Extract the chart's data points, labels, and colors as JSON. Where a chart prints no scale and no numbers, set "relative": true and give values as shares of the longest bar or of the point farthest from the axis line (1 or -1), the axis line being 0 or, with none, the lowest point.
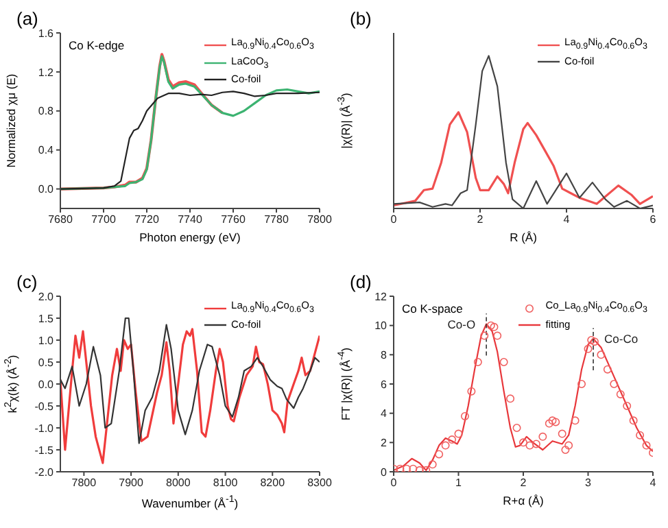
{
  "chart_data": [
    {
      "type": "line",
      "xlabel": "Photon energy (eV)",
      "ylabel": "Normalized χμ (E)",
      "annotations": [
        "(a)",
        "Co K-edge"
      ],
      "xlim": [
        7680,
        7800
      ],
      "xticks": [
        7680,
        7700,
        7720,
        7740,
        7760,
        7780,
        7800
      ],
      "ylim": [
        -0.2,
        1.6
      ],
      "yticks": [
        {
          "value": 0,
          "label": "0.0"
        },
        0.4,
        0.8,
        1.2,
        1.6
      ],
      "legend": "top right",
      "marker": "none",
      "series": [
        {
          "name": "La$_{0.9}$Ni$_{0.4}$Co$_{0.6}$O$_{3}$",
          "color": "#f05050",
          "x": [
            7680,
            7700,
            7705,
            7710,
            7712,
            7715,
            7718,
            7720,
            7722,
            7724,
            7726,
            7727,
            7728,
            7730,
            7732,
            7735,
            7738,
            7742,
            7745,
            7750,
            7755
          ],
          "values": [
            0,
            0.01,
            0.02,
            0.04,
            0.07,
            0.07,
            0.11,
            0.21,
            0.5,
            0.9,
            1.26,
            1.38,
            1.31,
            1.12,
            1.05,
            1.09,
            1.1,
            1.07,
            0.99,
            0.86,
            0.78
          ]
        },
        {
          "name": "LaCoO$_{3}$",
          "color": "#3cb371",
          "x": [
            7680,
            7700,
            7705,
            7710,
            7712,
            7715,
            7718,
            7720,
            7722,
            7724,
            7726,
            7727,
            7728,
            7730,
            7732,
            7735,
            7738,
            7742,
            7745,
            7750,
            7755,
            7760,
            7765,
            7770,
            7775,
            7780,
            7785,
            7790,
            7795,
            7800
          ],
          "values": [
            0,
            0.01,
            0.02,
            0.03,
            0.06,
            0.07,
            0.1,
            0.2,
            0.5,
            0.9,
            1.25,
            1.36,
            1.3,
            1.1,
            1.03,
            1.07,
            1.08,
            1.05,
            0.98,
            0.86,
            0.78,
            0.75,
            0.8,
            0.88,
            0.96,
            1.01,
            1.02,
            1.0,
            0.98,
            1.0
          ]
        },
        {
          "name": "Co-foil",
          "color": "#222222",
          "x": [
            7680,
            7700,
            7705,
            7708,
            7710,
            7712,
            7714,
            7716,
            7718,
            7720,
            7725,
            7730,
            7735,
            7740,
            7745,
            7750,
            7755,
            7760,
            7765,
            7770,
            7775,
            7780,
            7790,
            7800
          ],
          "values": [
            0,
            0.01,
            0.03,
            0.08,
            0.3,
            0.52,
            0.6,
            0.62,
            0.7,
            0.8,
            0.93,
            0.98,
            0.98,
            0.96,
            0.97,
            0.96,
            0.99,
            1.0,
            0.98,
            0.95,
            0.96,
            0.98,
            0.98,
            0.99
          ]
        }
      ]
    },
    {
      "type": "line",
      "xlabel": "R (Å)",
      "ylabel": "|χ(R)| (Å$^{-3}$)",
      "annotations": [
        "(b)"
      ],
      "relative": true,
      "xlim": [
        0,
        6
      ],
      "xticks": [
        0,
        2,
        4,
        6
      ],
      "tick_labels": "x",
      "legend": "top right",
      "marker": "none",
      "series": [
        {
          "name": "La$_{0.9}$Ni$_{0.4}$Co$_{0.6}$O$_{3}$",
          "color": "#f05050",
          "x": [
            0,
            0.5,
            0.7,
            0.9,
            1.1,
            1.3,
            1.5,
            1.7,
            1.9,
            2.0,
            2.2,
            2.4,
            2.55,
            2.65,
            2.8,
            3.0,
            3.1,
            3.3,
            3.5,
            3.7,
            3.9,
            4.1,
            4.3,
            4.7,
            5.2,
            5.5,
            5.7,
            6.0
          ],
          "values": [
            0.02,
            0.05,
            0.12,
            0.13,
            0.3,
            0.55,
            0.63,
            0.5,
            0.2,
            0.12,
            0.12,
            0.21,
            0.16,
            0.1,
            0.3,
            0.52,
            0.56,
            0.48,
            0.38,
            0.28,
            0.13,
            0.1,
            0.07,
            0.03,
            0.15,
            0.09,
            0.03,
            0.08
          ]
        },
        {
          "name": "Co-foil",
          "color": "#444444",
          "x": [
            0,
            0.6,
            0.9,
            1.2,
            1.35,
            1.55,
            1.7,
            1.9,
            2.05,
            2.2,
            2.4,
            2.6,
            2.75,
            3.0,
            3.3,
            3.55,
            4.0,
            4.3,
            4.6,
            4.9,
            5.1,
            5.4,
            5.7,
            6.0
          ],
          "values": [
            0.03,
            0.04,
            0.01,
            0.03,
            0.02,
            0.1,
            0.12,
            0.55,
            0.9,
            1.0,
            0.8,
            0.3,
            0.06,
            0.0,
            0.18,
            0.03,
            0.23,
            0.07,
            0.17,
            0.06,
            0.01,
            0.05,
            0.0,
            0.02
          ]
        }
      ]
    },
    {
      "type": "line",
      "xlabel": "Wavenumber (Å$^{-1}$)",
      "ylabel": "k$^{2}$χ(k) (Å$^{-2}$)",
      "annotations": [
        "(c)"
      ],
      "xlim": [
        7750,
        8300
      ],
      "xticks": [
        7800,
        7900,
        8000,
        8100,
        8200,
        8300
      ],
      "ylim": [
        -2,
        2
      ],
      "yticks": [
        {
          "value": -2,
          "label": "-2.0"
        },
        -1.5,
        {
          "value": -1,
          "label": "-1.0"
        },
        -0.5,
        {
          "value": 0,
          "label": "0.0"
        },
        0.5,
        {
          "value": 1,
          "label": "1.0"
        },
        1.5,
        {
          "value": 2,
          "label": "2.0"
        }
      ],
      "legend": "top right",
      "marker": "none",
      "series": [
        {
          "name": "La$_{0.9}$Ni$_{0.4}$Co$_{0.6}$O$_{3}$",
          "color": "#f03c3c",
          "x": [
            7750,
            7760,
            7775,
            7782,
            7790,
            7798,
            7805,
            7815,
            7825,
            7840,
            7850,
            7860,
            7870,
            7878,
            7885,
            7893,
            7900,
            7910,
            7922,
            7935,
            7945,
            7955,
            7965,
            7975,
            7982,
            7990,
            8000,
            8010,
            8018,
            8025,
            8030,
            8040,
            8050,
            8058,
            8068,
            8080,
            8088,
            8095,
            8105,
            8112,
            8118,
            8130,
            8145,
            8158,
            8165,
            8172,
            8180,
            8190,
            8200,
            8210,
            8220,
            8225,
            8232,
            8245,
            8255,
            8262,
            8270,
            8280,
            8290,
            8300
          ],
          "values": [
            0.1,
            -1.5,
            0.3,
            1.1,
            0.6,
            1.2,
            0.5,
            -0.5,
            -1.2,
            -1.8,
            -0.8,
            0.2,
            0.8,
            0.3,
            1.0,
            0.8,
            0.9,
            -0.2,
            -1.3,
            -1.2,
            -0.7,
            -0.2,
            0.2,
            0.95,
            0.3,
            -0.9,
            0.0,
            0.9,
            1.2,
            1.1,
            1.25,
            0.3,
            -1.1,
            -1.2,
            -0.6,
            0.3,
            0.8,
            0.5,
            -0.5,
            -0.8,
            -0.85,
            -0.3,
            0.2,
            0.4,
            0.85,
            0.5,
            0.45,
            0.0,
            -0.6,
            -0.7,
            -0.9,
            -1.1,
            -0.4,
            0.0,
            0.3,
            0.6,
            0.2,
            0.3,
            0.7,
            1.1
          ]
        },
        {
          "name": "Co-foil",
          "color": "#333333",
          "x": [
            7750,
            7760,
            7775,
            7790,
            7805,
            7820,
            7835,
            7845,
            7858,
            7875,
            7888,
            7895,
            7905,
            7917,
            7930,
            7945,
            7960,
            7975,
            7985,
            8000,
            8015,
            8030,
            8045,
            8062,
            8072,
            8088,
            8100,
            8115,
            8128,
            8140,
            8155,
            8168,
            8180,
            8195,
            8210,
            8220,
            8230,
            8245,
            8255,
            8265,
            8280,
            8290,
            8300
          ],
          "values": [
            0.1,
            -0.1,
            0.4,
            -0.5,
            0.0,
            0.85,
            0.2,
            -1.0,
            -0.9,
            0.3,
            1.5,
            1.5,
            0.3,
            -1.35,
            -0.6,
            -0.3,
            0.3,
            1.35,
            0.8,
            -0.6,
            -1.15,
            -0.6,
            0.3,
            0.9,
            0.85,
            0.2,
            -0.5,
            -0.75,
            -0.3,
            0.3,
            0.4,
            0.6,
            0.4,
            0.1,
            -0.05,
            -0.1,
            -0.35,
            -0.55,
            -0.3,
            -0.1,
            0.3,
            0.6,
            0.5
          ]
        }
      ]
    },
    {
      "type": "line",
      "xlabel": "R+α (Å)",
      "ylabel": "FT |χ(R)| (Å$^{-4}$)",
      "annotations": [
        "(d)",
        "Co K-space",
        {
          "text": "Co-O",
          "x": 1.43,
          "y": 10.1
        },
        {
          "text": "Co-Co",
          "x": 3.08,
          "y": 9.1
        }
      ],
      "xlim": [
        0,
        4
      ],
      "xticks": [
        0,
        1,
        2,
        3,
        4
      ],
      "ylim": [
        0,
        12
      ],
      "yticks": [
        0,
        2,
        4,
        6,
        8,
        10,
        12
      ],
      "legend": "top right",
      "marker": "none",
      "series": [
        {
          "type": "scatter",
          "marker": "circle",
          "name": "Co_La$_{0.9}$Ni$_{0.4}$Co$_{0.6}$O$_{3}$",
          "color": "#f06060",
          "x": [
            0,
            0.1,
            0.2,
            0.3,
            0.4,
            0.5,
            0.6,
            0.7,
            0.8,
            0.9,
            1.0,
            1.1,
            1.2,
            1.3,
            1.4,
            1.5,
            1.55,
            1.6,
            1.7,
            1.8,
            1.9,
            2.0,
            2.1,
            2.2,
            2.3,
            2.4,
            2.45,
            2.5,
            2.6,
            2.65,
            2.7,
            2.8,
            2.9,
            3.0,
            3.05,
            3.1,
            3.2,
            3.3,
            3.4,
            3.5,
            3.6,
            3.7,
            3.8,
            3.9,
            4.0
          ],
          "values": [
            0.2,
            0.2,
            0.2,
            0.2,
            0.1,
            0.1,
            0.5,
            1.2,
            1.8,
            2.2,
            2.6,
            3.8,
            5.5,
            7.5,
            9.3,
            10.0,
            9.9,
            9.3,
            7.5,
            5.0,
            3.0,
            2.0,
            1.8,
            1.9,
            2.4,
            3.3,
            3.5,
            3.4,
            2.6,
            1.5,
            1.8,
            3.5,
            6.0,
            8.4,
            9.0,
            8.9,
            8.0,
            7.0,
            6.0,
            5.3,
            4.5,
            3.5,
            2.5,
            1.8,
            1.3
          ]
        },
        {
          "name": "fitting",
          "color": "#e8373b",
          "x": [
            0,
            0.15,
            0.28,
            0.4,
            0.5,
            0.6,
            0.7,
            0.8,
            0.9,
            0.98,
            1.05,
            1.15,
            1.25,
            1.35,
            1.43,
            1.52,
            1.6,
            1.7,
            1.8,
            1.88,
            1.95,
            2.05,
            2.15,
            2.3,
            2.45,
            2.6,
            2.7,
            2.8,
            2.9,
            3.0,
            3.08,
            3.2,
            3.35,
            3.5,
            3.6,
            3.75,
            3.9,
            4.0
          ],
          "values": [
            0.1,
            0.4,
            0.9,
            0.6,
            0.1,
            0.8,
            1.8,
            2.3,
            2.1,
            1.9,
            2.5,
            4.5,
            7.0,
            9.3,
            10.1,
            9.6,
            8.2,
            5.5,
            3.0,
            1.7,
            1.8,
            2.4,
            2.0,
            1.5,
            2.1,
            1.9,
            2.5,
            4.5,
            7.0,
            8.7,
            9.1,
            8.5,
            7.0,
            5.5,
            4.5,
            3.0,
            1.8,
            1.4
          ]
        }
      ]
    }
  ]
}
